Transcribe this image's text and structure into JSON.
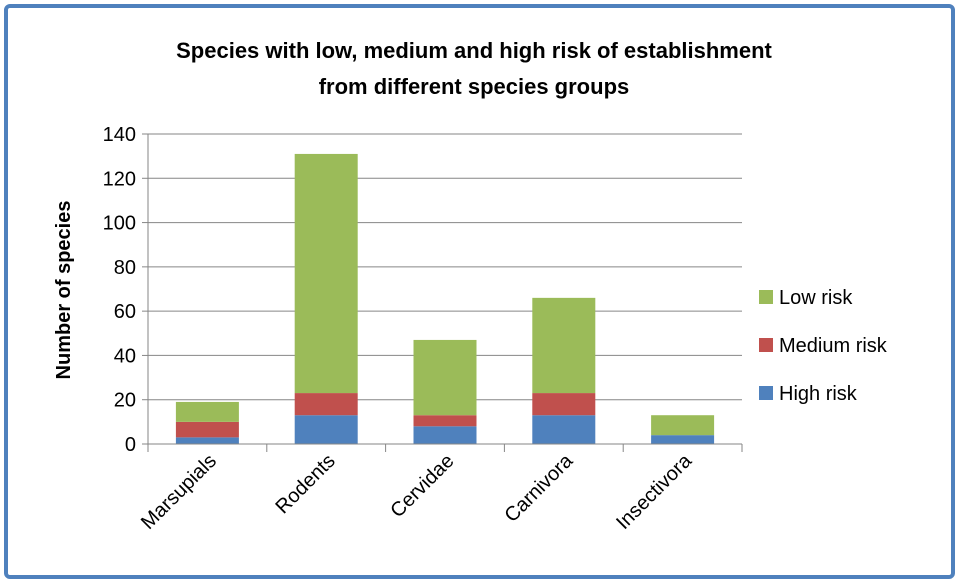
{
  "chart_data": {
    "type": "bar",
    "stacked": true,
    "title_lines": [
      "Species with low, medium and high risk of establishment",
      "from different species groups"
    ],
    "xlabel": "",
    "ylabel": "Number of species",
    "ylim": [
      0,
      140
    ],
    "yticks": [
      0,
      20,
      40,
      60,
      80,
      100,
      120,
      140
    ],
    "grid": true,
    "legend_position": "right",
    "categories": [
      "Marsupials",
      "Rodents",
      "Cervidae",
      "Carnivora",
      "Insectivora"
    ],
    "series": [
      {
        "name": "High risk",
        "color": "#4f81bd",
        "values": [
          3,
          13,
          8,
          13,
          4
        ]
      },
      {
        "name": "Medium risk",
        "color": "#c0504d",
        "values": [
          7,
          10,
          5,
          10,
          0
        ]
      },
      {
        "name": "Low risk",
        "color": "#9bbb59",
        "values": [
          9,
          108,
          34,
          43,
          9
        ]
      }
    ]
  }
}
